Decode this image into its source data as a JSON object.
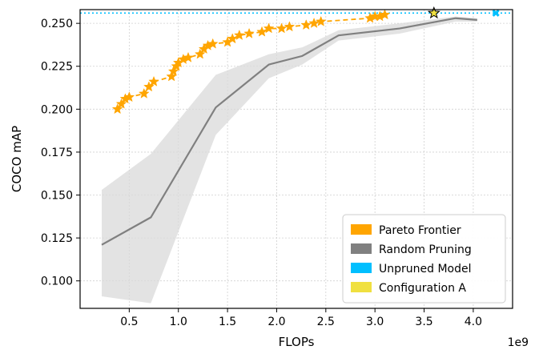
{
  "chart_data": {
    "type": "line",
    "xlabel": "FLOPs",
    "ylabel": "COCO mAP",
    "x_offset_label": "1e9",
    "xlim": [
      0.0,
      4.4
    ],
    "ylim": [
      0.084,
      0.258
    ],
    "x_ticks": [
      0.5,
      1.0,
      1.5,
      2.0,
      2.5,
      3.0,
      3.5,
      4.0
    ],
    "x_tick_labels": [
      "0.5",
      "1.0",
      "1.5",
      "2.0",
      "2.5",
      "3.0",
      "3.5",
      "4.0"
    ],
    "y_ticks": [
      0.1,
      0.125,
      0.15,
      0.175,
      0.2,
      0.225,
      0.25
    ],
    "y_tick_labels": [
      "0.100",
      "0.125",
      "0.150",
      "0.175",
      "0.200",
      "0.225",
      "0.250"
    ],
    "grid": true,
    "legend_position": "bottom-right",
    "legend": [
      {
        "label": "Pareto Frontier",
        "color": "#FFA500"
      },
      {
        "label": "Random Pruning",
        "color": "#808080"
      },
      {
        "label": "Unpruned Model",
        "color": "#00BFFF"
      },
      {
        "label": "Configuration A",
        "color": "#F0E040"
      }
    ],
    "series": [
      {
        "name": "Random Pruning",
        "color": "#808080",
        "x": [
          0.22,
          0.72,
          1.38,
          1.92,
          2.26,
          2.63,
          3.25,
          3.82,
          4.04
        ],
        "y": [
          0.121,
          0.137,
          0.201,
          0.226,
          0.231,
          0.243,
          0.247,
          0.253,
          0.252
        ],
        "band_low": [
          0.091,
          0.087,
          0.185,
          0.218,
          0.226,
          0.24,
          0.244,
          0.251,
          0.251
        ],
        "band_high": [
          0.153,
          0.174,
          0.22,
          0.232,
          0.236,
          0.246,
          0.25,
          0.254,
          0.253
        ]
      },
      {
        "name": "Pareto Frontier",
        "color": "#FFA500",
        "x": [
          0.38,
          0.42,
          0.46,
          0.5,
          0.65,
          0.7,
          0.75,
          0.93,
          0.95,
          0.98,
          1.0,
          1.05,
          1.1,
          1.22,
          1.26,
          1.3,
          1.35,
          1.5,
          1.55,
          1.62,
          1.72,
          1.85,
          1.92,
          2.05,
          2.13,
          2.3,
          2.38,
          2.45,
          2.95,
          3.0,
          3.05,
          3.1
        ],
        "y": [
          0.2,
          0.203,
          0.206,
          0.207,
          0.209,
          0.213,
          0.216,
          0.219,
          0.222,
          0.225,
          0.227,
          0.229,
          0.23,
          0.232,
          0.235,
          0.237,
          0.238,
          0.239,
          0.241,
          0.243,
          0.244,
          0.245,
          0.247,
          0.247,
          0.248,
          0.249,
          0.25,
          0.251,
          0.253,
          0.254,
          0.254,
          0.255
        ]
      },
      {
        "name": "Configuration A",
        "color": "#F0E040",
        "x": [
          3.6
        ],
        "y": [
          0.256
        ]
      },
      {
        "name": "Unpruned Model",
        "color": "#00BFFF",
        "x": [
          4.23
        ],
        "y": [
          0.256
        ],
        "reference_line_y": 0.256
      }
    ]
  }
}
